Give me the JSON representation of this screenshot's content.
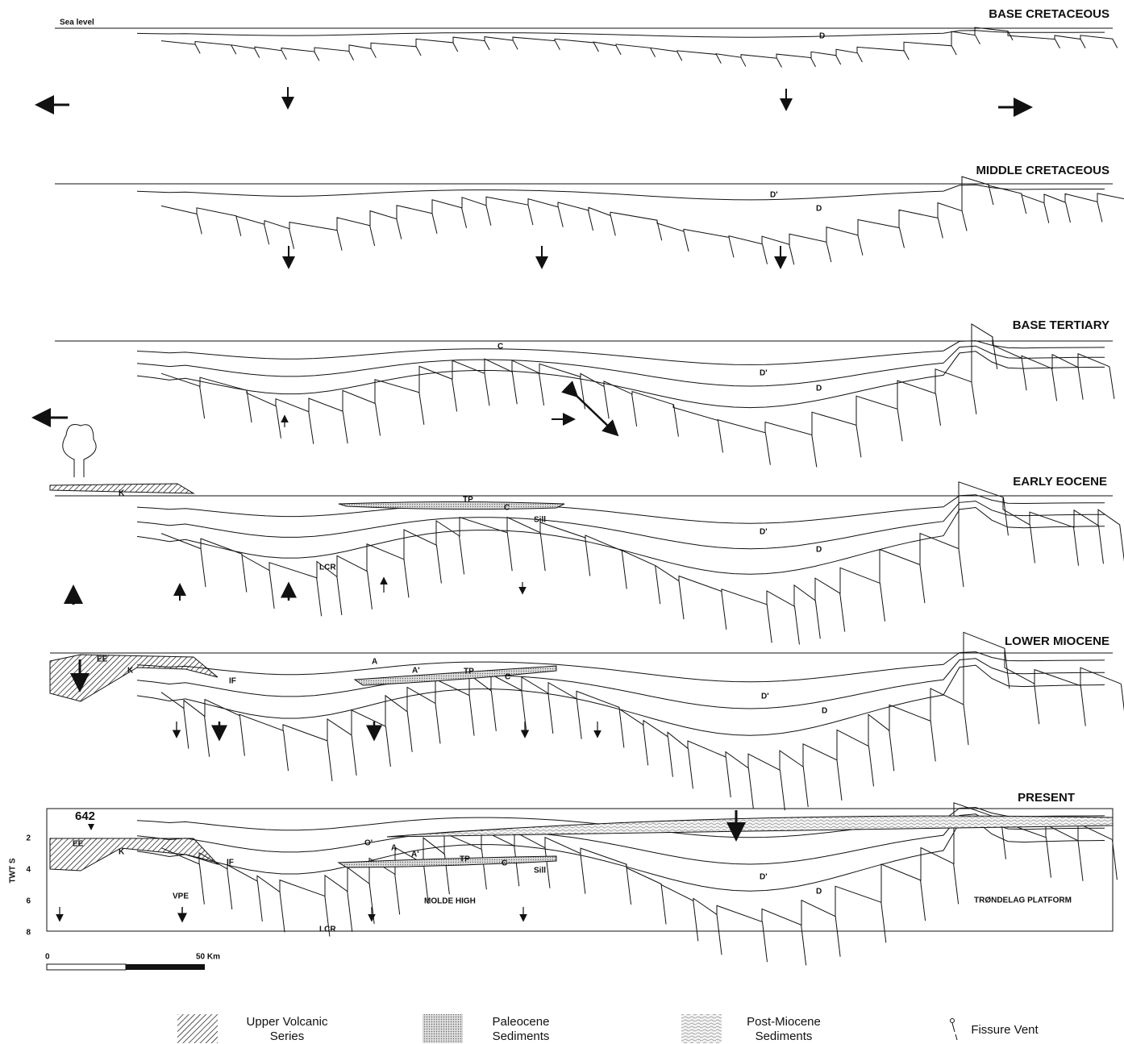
{
  "panels": [
    {
      "title": "BASE CRETACEOUS",
      "labels": [
        "Sea level",
        "D"
      ]
    },
    {
      "title": "MIDDLE CRETACEOUS",
      "labels": [
        "D'",
        "D"
      ]
    },
    {
      "title": "BASE TERTIARY",
      "labels": [
        "C",
        "D'",
        "D"
      ]
    },
    {
      "title": "EARLY EOCENE",
      "labels": [
        "K",
        "TP",
        "C",
        "Sill",
        "D'",
        "D",
        "LCR"
      ]
    },
    {
      "title": "LOWER MIOCENE",
      "labels": [
        "EE",
        "K",
        "A",
        "A'",
        "TP",
        "C",
        "IF",
        "D'",
        "D"
      ]
    },
    {
      "title": "PRESENT",
      "labels": [
        "642",
        "EE",
        "K",
        "O'",
        "A",
        "A'",
        "TP",
        "C",
        "Sill",
        "IF",
        "D'",
        "D",
        "VPE",
        "MOLDE HIGH",
        "LCR",
        "TRØNDELAG PLATFORM"
      ]
    }
  ],
  "axis": {
    "title": "TWT S",
    "ticks": [
      "2",
      "4",
      "6",
      "8"
    ]
  },
  "scale": {
    "start": "0",
    "end": "50 Km"
  },
  "legend": [
    {
      "lines": [
        "Upper Volcanic",
        "Series"
      ]
    },
    {
      "lines": [
        "Paleocene",
        "Sediments"
      ]
    },
    {
      "lines": [
        "Post-Miocene",
        "Sediments"
      ]
    },
    {
      "lines": [
        "Fissure Vent"
      ]
    }
  ]
}
